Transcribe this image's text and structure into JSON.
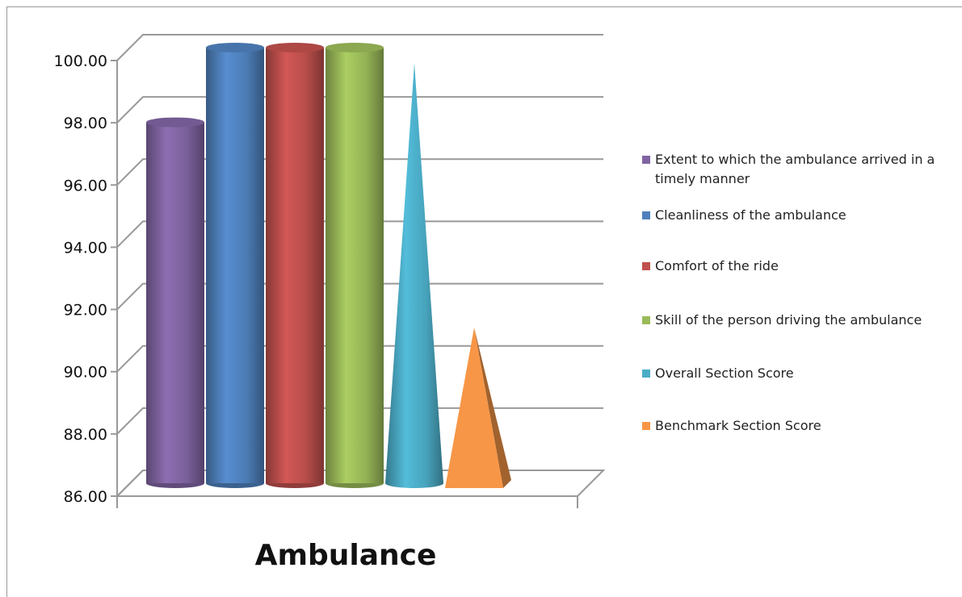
{
  "chart_data": {
    "type": "bar3d",
    "categories": [
      "Ambulance"
    ],
    "series": [
      {
        "name": "Extent to which the ambulance arrived in a timely manner",
        "color": "#8064a2",
        "shape": "cylinder",
        "values": [
          97.6
        ]
      },
      {
        "name": "Cleanliness of the ambulance",
        "color": "#4f81bd",
        "shape": "cylinder",
        "values": [
          100
        ]
      },
      {
        "name": "Comfort of the ride",
        "color": "#c0504d",
        "shape": "cylinder",
        "values": [
          100
        ]
      },
      {
        "name": "Skill of the person driving the ambulance",
        "color": "#9bbb59",
        "shape": "cylinder",
        "values": [
          100
        ]
      },
      {
        "name": "Overall Section  Score",
        "color": "#4bacc6",
        "shape": "cone",
        "values": [
          99.5
        ]
      },
      {
        "name": "Benchmark Section  Score",
        "color": "#f79646",
        "shape": "pyramid",
        "values": [
          91
        ]
      }
    ],
    "ylim": [
      86,
      100
    ],
    "yticks": [
      {
        "value": 86,
        "label": "86.00"
      },
      {
        "value": 88,
        "label": "88.00"
      },
      {
        "value": 90,
        "label": "90.00"
      },
      {
        "value": 92,
        "label": "92.00"
      },
      {
        "value": 94,
        "label": "94.00"
      },
      {
        "value": 96,
        "label": "96.00"
      },
      {
        "value": 98,
        "label": "98.00"
      },
      {
        "value": 100,
        "label": "100.00"
      }
    ],
    "grid": true,
    "legend": "right"
  }
}
